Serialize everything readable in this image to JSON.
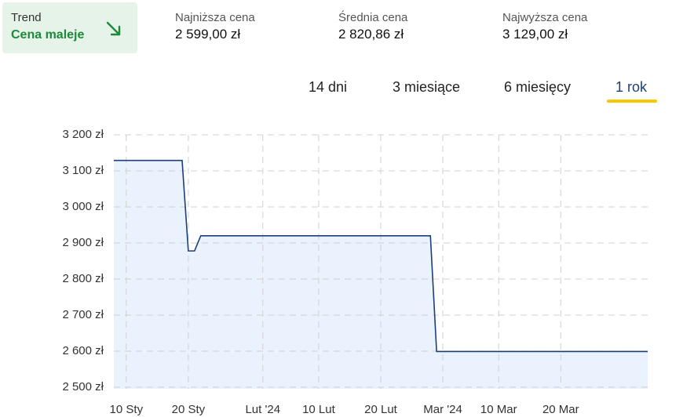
{
  "trend": {
    "label": "Trend",
    "value": "Cena maleje"
  },
  "stats": [
    {
      "label": "Najniższa cena",
      "value": "2 599,00 zł"
    },
    {
      "label": "Średnia cena",
      "value": "2 820,86 zł"
    },
    {
      "label": "Najwyższa cena",
      "value": "3 129,00 zł"
    }
  ],
  "tabs": [
    "14 dni",
    "3 miesiące",
    "6 miesięcy",
    "1 rok"
  ],
  "chart_data": {
    "type": "area",
    "x": [
      "2024-01-08",
      "2024-01-19",
      "2024-01-20",
      "2024-01-21",
      "2024-01-22",
      "2024-02-28",
      "2024-02-29",
      "2024-04-03"
    ],
    "series": [
      {
        "color": "#1c3f78",
        "values": [
          3129,
          3129,
          2878,
          2878,
          2920,
          2920,
          2599,
          2599
        ]
      }
    ],
    "area_color": "#eaf2fd",
    "xlim": [
      "2024-01-08",
      "2024-04-03"
    ],
    "xticks": [
      {
        "value": "2024-01-10",
        "label": "10 Sty"
      },
      {
        "value": "2024-01-20",
        "label": "20 Sty"
      },
      {
        "value": "2024-02-01",
        "label": "Lut '24"
      },
      {
        "value": "2024-02-10",
        "label": "10 Lut"
      },
      {
        "value": "2024-02-20",
        "label": "20 Lut"
      },
      {
        "value": "2024-03-01",
        "label": "Mar '24"
      },
      {
        "value": "2024-03-10",
        "label": "10 Mar"
      },
      {
        "value": "2024-03-20",
        "label": "20 Mar"
      }
    ],
    "ylim": [
      2500,
      3200
    ],
    "yticks": [
      {
        "value": 2500,
        "label": "2 500 zł"
      },
      {
        "value": 2600,
        "label": "2 600 zł"
      },
      {
        "value": 2700,
        "label": "2 700 zł"
      },
      {
        "value": 2800,
        "label": "2 800 zł"
      },
      {
        "value": 2900,
        "label": "2 900 zł"
      },
      {
        "value": 3000,
        "label": "3 000 zł"
      },
      {
        "value": 3100,
        "label": "3 100 zł"
      },
      {
        "value": 3200,
        "label": "3 200 zł"
      }
    ],
    "grid": true
  }
}
